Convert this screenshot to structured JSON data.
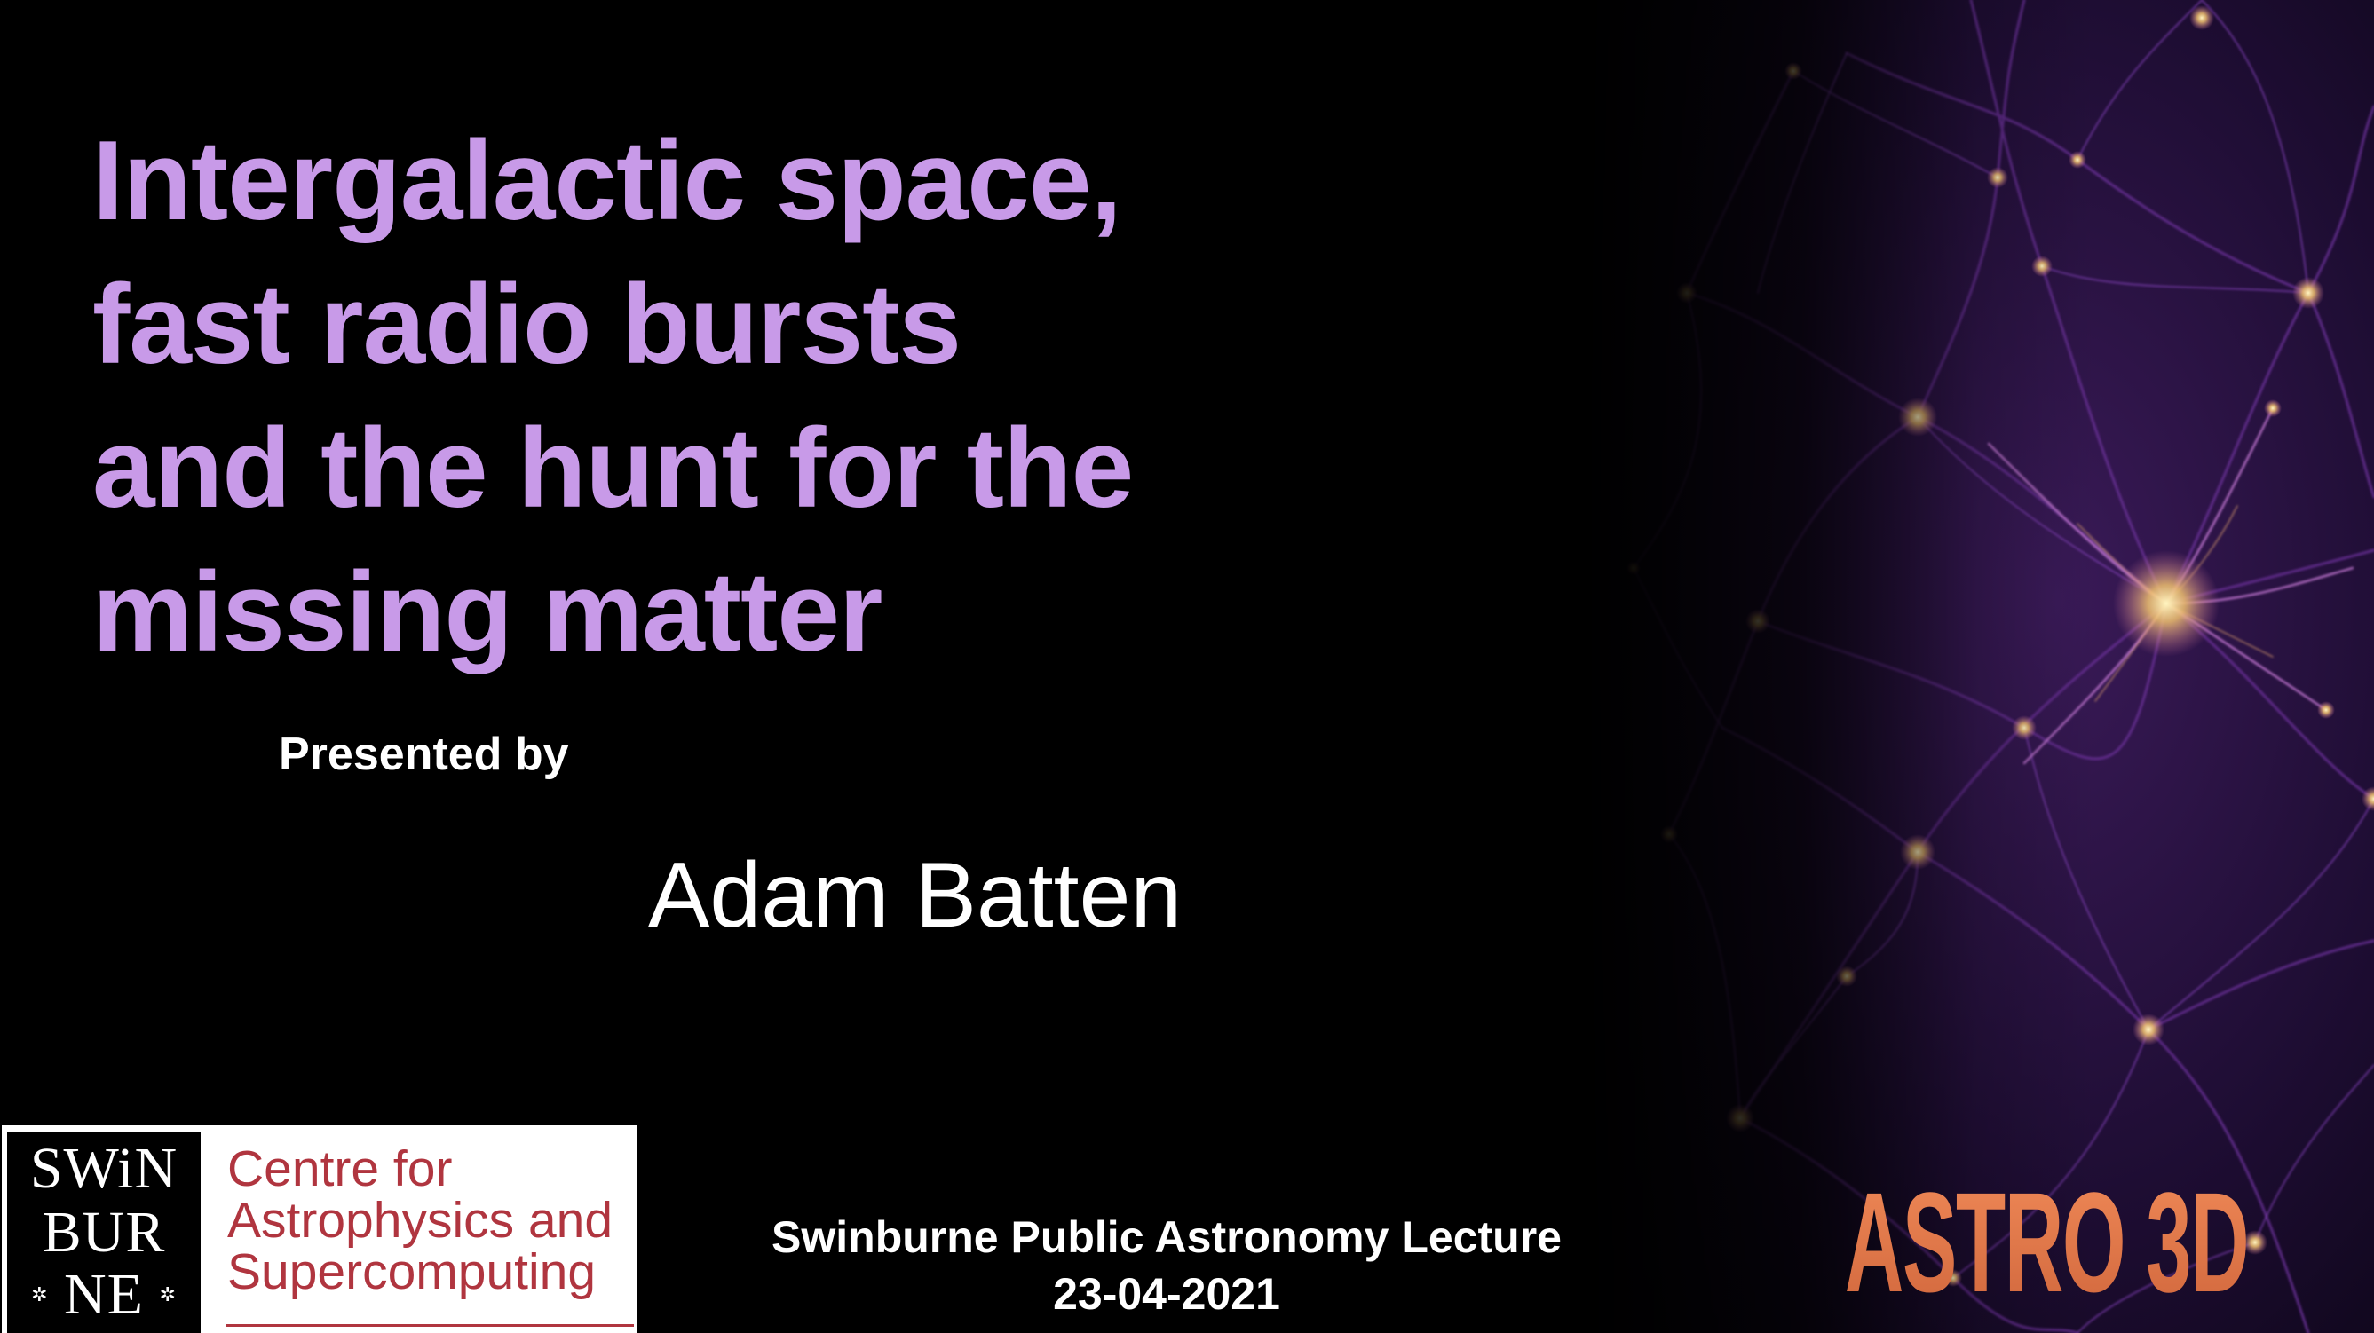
{
  "slide": {
    "title_lines": [
      "Intergalactic space,",
      "fast radio bursts",
      "and the hunt for the",
      "missing matter"
    ],
    "presented_by": "Presented by",
    "speaker": "Adam Batten",
    "event": "Swinburne Public Astronomy Lecture",
    "date": "23-04-2021"
  },
  "swinburne_logo": {
    "mark_lines": [
      "SWiN",
      "BUR",
      "NE"
    ],
    "star_glyph": "✲",
    "centre_lines": [
      "Centre for",
      "Astrophysics and",
      "Supercomputing"
    ]
  },
  "astro3d_logo": {
    "text": "ASTRO 3D"
  },
  "colors": {
    "background": "#000000",
    "title": "#c89ae8",
    "body_text": "#ffffff",
    "swinburne_red": "#b0353f",
    "astro3d_orange": "#e07a4e",
    "cosmic_filament": "#9a4fd0",
    "cosmic_node": "#f5d27a"
  }
}
